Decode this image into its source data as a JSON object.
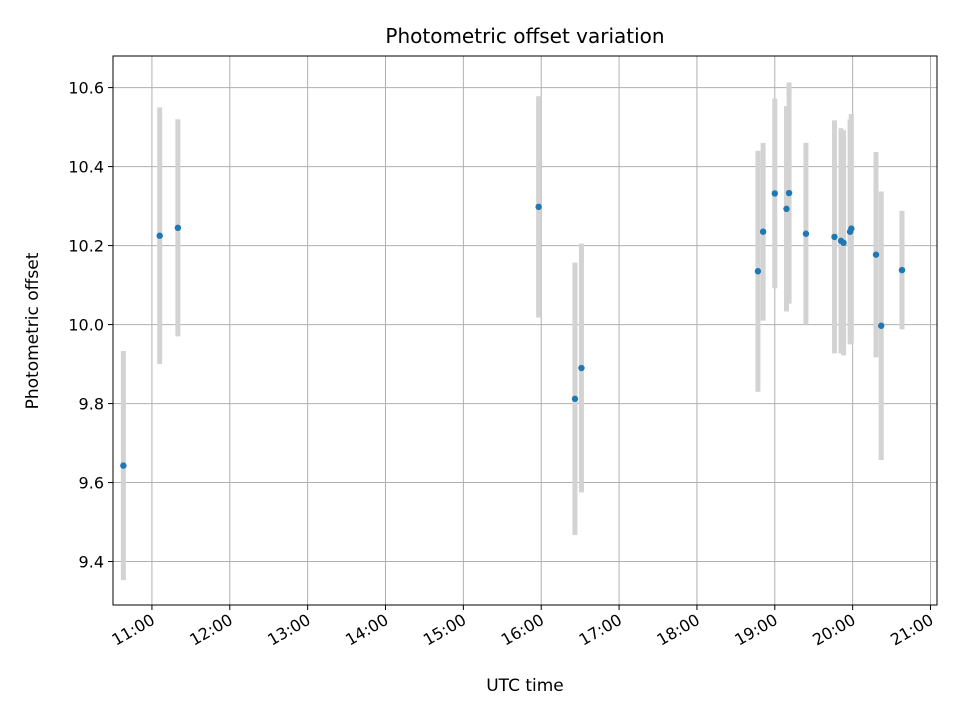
{
  "chart_data": {
    "type": "scatter",
    "title": "Photometric offset variation",
    "xlabel": "UTC time",
    "ylabel": "Photometric offset",
    "grid": true,
    "xlim": [
      "10:30",
      "21:05"
    ],
    "ylim": [
      9.29,
      10.68
    ],
    "x_ticks": [
      "11:00",
      "12:00",
      "13:00",
      "14:00",
      "15:00",
      "16:00",
      "17:00",
      "18:00",
      "19:00",
      "20:00",
      "21:00"
    ],
    "y_ticks": [
      9.4,
      9.6,
      9.8,
      10.0,
      10.2,
      10.4,
      10.6
    ],
    "y_tick_labels": [
      "9.4",
      "9.6",
      "9.8",
      "10.0",
      "10.2",
      "10.4",
      "10.6"
    ],
    "points_color": "#1f77b4",
    "errorbar_color": "#d3d3d3",
    "points": [
      {
        "x": "10:38",
        "y": 9.643,
        "yerr": 0.29
      },
      {
        "x": "11:06",
        "y": 10.225,
        "yerr": 0.325
      },
      {
        "x": "11:20",
        "y": 10.245,
        "yerr": 0.275
      },
      {
        "x": "15:58",
        "y": 10.298,
        "yerr": 0.28
      },
      {
        "x": "16:26",
        "y": 9.812,
        "yerr": 0.345
      },
      {
        "x": "16:31",
        "y": 9.89,
        "yerr": 0.315
      },
      {
        "x": "18:47",
        "y": 10.135,
        "yerr": 0.305
      },
      {
        "x": "18:51",
        "y": 10.235,
        "yerr": 0.225
      },
      {
        "x": "19:00",
        "y": 10.332,
        "yerr": 0.24
      },
      {
        "x": "19:09",
        "y": 10.293,
        "yerr": 0.26
      },
      {
        "x": "19:11",
        "y": 10.333,
        "yerr": 0.28
      },
      {
        "x": "19:24",
        "y": 10.23,
        "yerr": 0.23
      },
      {
        "x": "19:46",
        "y": 10.222,
        "yerr": 0.295
      },
      {
        "x": "19:51",
        "y": 10.212,
        "yerr": 0.285
      },
      {
        "x": "19:53",
        "y": 10.207,
        "yerr": 0.285
      },
      {
        "x": "19:58",
        "y": 10.235,
        "yerr": 0.285
      },
      {
        "x": "19:59",
        "y": 10.243,
        "yerr": 0.29
      },
      {
        "x": "20:18",
        "y": 10.177,
        "yerr": 0.26
      },
      {
        "x": "20:22",
        "y": 9.997,
        "yerr": 0.34
      },
      {
        "x": "20:38",
        "y": 10.138,
        "yerr": 0.15
      }
    ]
  }
}
